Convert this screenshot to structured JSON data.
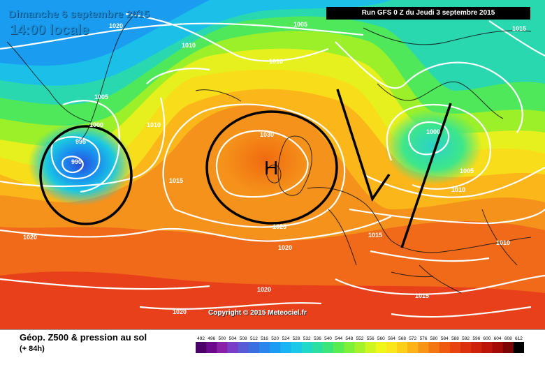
{
  "header": {
    "date": "Dimanche 6 septembre 2015",
    "time": "14:00 locale",
    "run": "Run GFS 0 Z du Jeudi 3 septembre 2015"
  },
  "copyright": "Copyright © 2015 Meteociel.fr",
  "legend": {
    "title": "Géop. Z500 & pression au sol",
    "subtitle": "(+ 84h)",
    "scale_values": [
      "492",
      "496",
      "500",
      "504",
      "508",
      "512",
      "516",
      "520",
      "524",
      "528",
      "532",
      "536",
      "540",
      "544",
      "548",
      "552",
      "556",
      "560",
      "564",
      "568",
      "572",
      "576",
      "580",
      "584",
      "588",
      "592",
      "596",
      "600",
      "604",
      "608",
      "612"
    ],
    "scale_colors": [
      "#4a0066",
      "#6b0a8a",
      "#8a1fa8",
      "#7a3dc7",
      "#5a59d6",
      "#3b6fe0",
      "#2a86ec",
      "#1a9cf5",
      "#18b4f5",
      "#1ac8e8",
      "#1fd8c8",
      "#29e0a0",
      "#3ae67a",
      "#57ec52",
      "#7df03a",
      "#a6f22a",
      "#cff520",
      "#f0f51a",
      "#fae61a",
      "#fccf18",
      "#fbb316",
      "#f89514",
      "#f47612",
      "#ef5a10",
      "#e8420e",
      "#dd300c",
      "#cf200a",
      "#bc1408",
      "#a50b06",
      "#7a0604",
      "#000000"
    ]
  },
  "isobar_labels": [
    {
      "text": "1020"
    },
    {
      "text": "1010"
    },
    {
      "text": "1005"
    },
    {
      "text": "1000"
    },
    {
      "text": "995"
    },
    {
      "text": "990"
    },
    {
      "text": "1010"
    },
    {
      "text": "1015"
    },
    {
      "text": "1030"
    },
    {
      "text": "1025"
    },
    {
      "text": "1020"
    },
    {
      "text": "1020"
    },
    {
      "text": "1020"
    },
    {
      "text": "1020"
    },
    {
      "text": "1005"
    },
    {
      "text": "1010"
    },
    {
      "text": "1015"
    },
    {
      "text": "1000"
    },
    {
      "text": "1005"
    },
    {
      "text": "1010"
    },
    {
      "text": "1015"
    },
    {
      "text": "1010"
    },
    {
      "text": "1015"
    }
  ],
  "annotations": {
    "high_letter": "H"
  }
}
